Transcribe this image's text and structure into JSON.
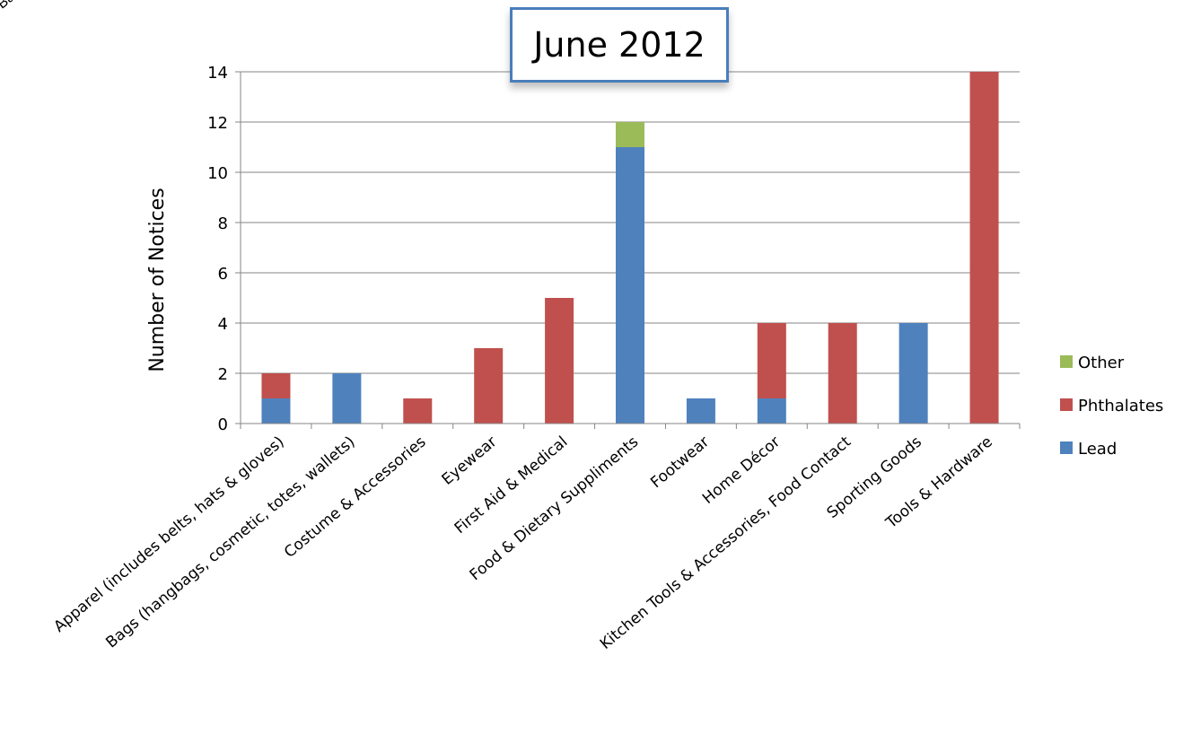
{
  "corner_label": "Bags (Ha",
  "chart_data": {
    "type": "bar",
    "stacked": true,
    "title": "June 2012",
    "ylabel": "Number of Notices",
    "xlabel": "",
    "ylim": [
      0,
      14
    ],
    "yticks": [
      0,
      2,
      4,
      6,
      8,
      10,
      12,
      14
    ],
    "grid": true,
    "legend_position": "right",
    "categories": [
      "Apparel (includes belts, hats & gloves)",
      "Bags (hangbags, cosmetic, totes, wallets)",
      "Costume & Accessories",
      "Eyewear",
      "First Aid & Medical",
      "Food & Dietary Suppliments",
      "Footwear",
      "Home Décor",
      "Kitchen Tools & Accessories, Food Contact",
      "Sporting Goods",
      "Tools & Hardware"
    ],
    "series": [
      {
        "name": "Lead",
        "color": "#4f81bd",
        "values": [
          1,
          2,
          0,
          0,
          0,
          11,
          1,
          1,
          0,
          4,
          0
        ]
      },
      {
        "name": "Phthalates",
        "color": "#c0504d",
        "values": [
          1,
          0,
          1,
          3,
          5,
          0,
          0,
          3,
          4,
          0,
          14
        ]
      },
      {
        "name": "Other",
        "color": "#9bbb59",
        "values": [
          0,
          0,
          0,
          0,
          0,
          1,
          0,
          0,
          0,
          0,
          0
        ]
      }
    ],
    "legend_order": [
      "Other",
      "Phthalates",
      "Lead"
    ]
  }
}
